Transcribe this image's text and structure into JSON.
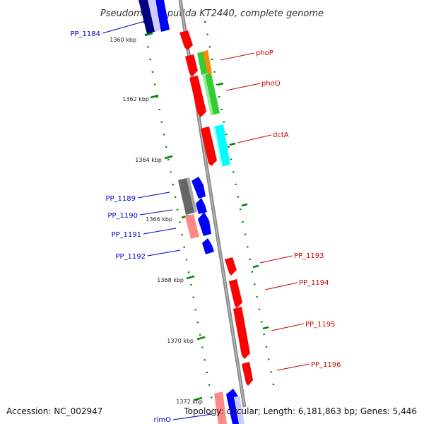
{
  "title": "Pseudomonas putida KT2440, complete genome",
  "footer": {
    "accession": "Accession: NC_002947",
    "summary": "Topology: circular; Length: 6,181,863 bp; Genes: 5,446"
  },
  "kbp_labels": [
    "1360 kbp",
    "1362 kbp",
    "1364 kbp",
    "1366 kbp",
    "1368 kbp",
    "1370 kbp",
    "1372 kbp"
  ],
  "gene_labels_left": [
    "PP_1184",
    "PP_1189",
    "PP_1190",
    "PP_1191",
    "PP_1192",
    "rimO"
  ],
  "gene_labels_right": [
    "phoP",
    "phoQ",
    "dctA",
    "PP_1193",
    "PP_1194",
    "PP_1195",
    "PP_1196"
  ],
  "colors": {
    "backbone": "#888888",
    "red": "#ff0000",
    "blue": "#0000ff",
    "navy": "#000080",
    "green": "#33cc33",
    "orange": "#ff8800",
    "cyan": "#00ffff",
    "gray": "#666666",
    "pink": "#ff8888",
    "tick": "#008800",
    "left_label": "#0000cc",
    "right_label": "#cc0000"
  }
}
